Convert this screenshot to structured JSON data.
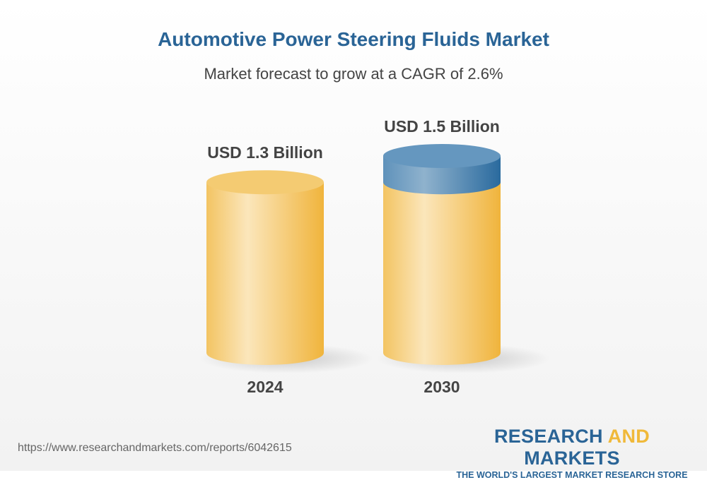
{
  "title": "Automotive Power Steering Fluids Market",
  "subtitle": "Market forecast to grow at a CAGR of 2.6%",
  "chart_data": {
    "type": "bar",
    "style": "3d-cylinder",
    "categories": [
      "2024",
      "2030"
    ],
    "values": [
      1.3,
      1.5
    ],
    "data_labels": [
      "USD 1.3 Billion",
      "USD 1.5 Billion"
    ],
    "unit": "USD Billion",
    "colors": {
      "base": "#f2c055",
      "growth": "#4a84b4"
    }
  },
  "footer": {
    "url": "https://www.researchandmarkets.com/reports/6042615",
    "logo_part1": "RESEARCH ",
    "logo_part2": "AND",
    "logo_part3": " MARKETS",
    "tagline": "THE WORLD'S LARGEST MARKET RESEARCH STORE"
  }
}
